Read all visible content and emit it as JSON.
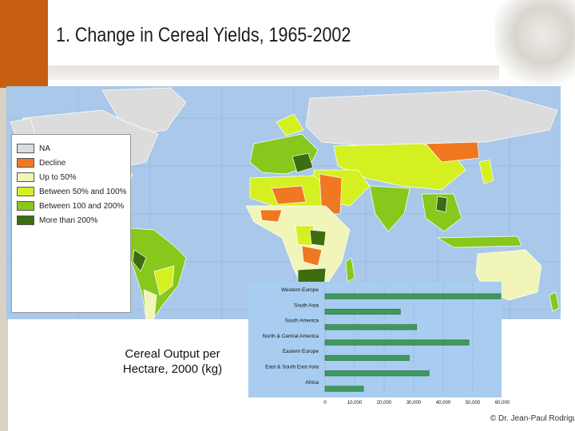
{
  "slide": {
    "title": "1. Change in Cereal Yields, 1965-2002",
    "credit": "© Dr. Jean-Paul Rodrigue"
  },
  "map": {
    "legend": [
      {
        "label": "NA",
        "color": "#dcdcdc"
      },
      {
        "label": "Decline",
        "color": "#f07820"
      },
      {
        "label": "Up to 50%",
        "color": "#f2f5b8"
      },
      {
        "label": "Between 50% and 100%",
        "color": "#d4f020"
      },
      {
        "label": "Between 100 and 200%",
        "color": "#86c81c"
      },
      {
        "label": "More than 200%",
        "color": "#3c6e10"
      }
    ],
    "ocean_color": "#a9c8ea"
  },
  "caption": {
    "line1": "Cereal Output per",
    "line2": "Hectare, 2000 (kg)"
  },
  "chart_data": {
    "type": "bar",
    "orientation": "horizontal",
    "categories": [
      "Western Europe",
      "South Asia",
      "South America",
      "North & Central America",
      "Eastern Europe",
      "East & South East Asia",
      "Africa"
    ],
    "values": [
      60500,
      25500,
      31000,
      48700,
      28500,
      35200,
      13000
    ],
    "xlim": [
      0,
      60000
    ],
    "xticks": [
      "0",
      "10,000",
      "20,000",
      "30,000",
      "40,000",
      "50,000",
      "60,000"
    ],
    "bar_color": "#3d9a5c",
    "panel_color": "#a8cdf0"
  }
}
